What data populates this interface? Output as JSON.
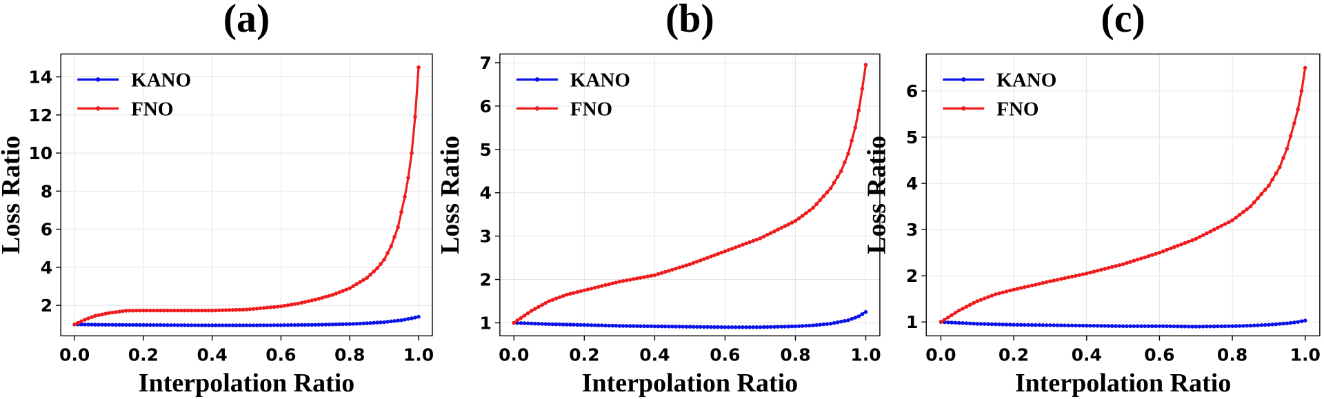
{
  "chart_data": [
    {
      "panel": "(a)",
      "type": "line",
      "xlabel": "Interpolation Ratio",
      "ylabel": "Loss Ratio",
      "xlim": [
        -0.04,
        1.04
      ],
      "ylim": [
        0.4,
        15.2
      ],
      "xticks": [
        0.0,
        0.2,
        0.4,
        0.6,
        0.8,
        1.0
      ],
      "xtick_labels": [
        "0.0",
        "0.2",
        "0.4",
        "0.6",
        "0.8",
        "1.0"
      ],
      "yticks": [
        2,
        4,
        6,
        8,
        10,
        12,
        14
      ],
      "ytick_labels": [
        "2",
        "4",
        "6",
        "8",
        "10",
        "12",
        "14"
      ],
      "grid": true,
      "legend_position": "top-left",
      "series": [
        {
          "name": "KANO",
          "color": "#0a14e6",
          "x": [
            0.0,
            0.1,
            0.2,
            0.3,
            0.4,
            0.5,
            0.6,
            0.7,
            0.8,
            0.85,
            0.9,
            0.95,
            0.98,
            1.0
          ],
          "y": [
            1.0,
            0.98,
            0.97,
            0.96,
            0.95,
            0.95,
            0.96,
            0.98,
            1.02,
            1.06,
            1.12,
            1.22,
            1.32,
            1.4
          ]
        },
        {
          "name": "FNO",
          "color": "#ee1c1c",
          "x": [
            0.0,
            0.03,
            0.06,
            0.1,
            0.15,
            0.2,
            0.3,
            0.4,
            0.5,
            0.6,
            0.65,
            0.7,
            0.75,
            0.8,
            0.85,
            0.88,
            0.9,
            0.92,
            0.94,
            0.96,
            0.97,
            0.98,
            0.99,
            1.0
          ],
          "y": [
            1.0,
            1.25,
            1.45,
            1.6,
            1.72,
            1.73,
            1.73,
            1.73,
            1.78,
            1.95,
            2.1,
            2.3,
            2.55,
            2.9,
            3.45,
            3.95,
            4.4,
            5.1,
            6.1,
            7.7,
            8.7,
            10.0,
            11.9,
            14.5
          ]
        }
      ]
    },
    {
      "panel": "(b)",
      "type": "line",
      "xlabel": "Interpolation Ratio",
      "ylabel": "Loss Ratio",
      "xlim": [
        -0.04,
        1.04
      ],
      "ylim": [
        0.7,
        7.2
      ],
      "xticks": [
        0.0,
        0.2,
        0.4,
        0.6,
        0.8,
        1.0
      ],
      "xtick_labels": [
        "0.0",
        "0.2",
        "0.4",
        "0.6",
        "0.8",
        "1.0"
      ],
      "yticks": [
        1,
        2,
        3,
        4,
        5,
        6,
        7
      ],
      "ytick_labels": [
        "1",
        "2",
        "3",
        "4",
        "5",
        "6",
        "7"
      ],
      "grid": true,
      "legend_position": "top-left",
      "series": [
        {
          "name": "KANO",
          "color": "#0a14e6",
          "x": [
            0.0,
            0.1,
            0.2,
            0.3,
            0.4,
            0.5,
            0.6,
            0.7,
            0.8,
            0.85,
            0.9,
            0.95,
            0.98,
            1.0
          ],
          "y": [
            1.0,
            0.97,
            0.95,
            0.93,
            0.92,
            0.91,
            0.9,
            0.9,
            0.92,
            0.94,
            0.98,
            1.06,
            1.15,
            1.25
          ]
        },
        {
          "name": "FNO",
          "color": "#ee1c1c",
          "x": [
            0.0,
            0.05,
            0.1,
            0.15,
            0.2,
            0.3,
            0.4,
            0.5,
            0.6,
            0.7,
            0.8,
            0.85,
            0.9,
            0.93,
            0.95,
            0.97,
            0.98,
            0.99,
            1.0
          ],
          "y": [
            1.0,
            1.28,
            1.5,
            1.65,
            1.75,
            1.95,
            2.1,
            2.35,
            2.65,
            2.95,
            3.35,
            3.65,
            4.1,
            4.5,
            4.9,
            5.5,
            5.9,
            6.4,
            6.95
          ]
        }
      ]
    },
    {
      "panel": "(c)",
      "type": "line",
      "xlabel": "Interpolation Ratio",
      "ylabel": "Loss Ratio",
      "xlim": [
        -0.04,
        1.04
      ],
      "ylim": [
        0.7,
        6.8
      ],
      "xticks": [
        0.0,
        0.2,
        0.4,
        0.6,
        0.8,
        1.0
      ],
      "xtick_labels": [
        "0.0",
        "0.2",
        "0.4",
        "0.6",
        "0.8",
        "1.0"
      ],
      "yticks": [
        1,
        2,
        3,
        4,
        5,
        6
      ],
      "ytick_labels": [
        "1",
        "2",
        "3",
        "4",
        "5",
        "6"
      ],
      "grid": true,
      "legend_position": "top-left",
      "series": [
        {
          "name": "KANO",
          "color": "#0a14e6",
          "x": [
            0.0,
            0.1,
            0.2,
            0.3,
            0.4,
            0.5,
            0.6,
            0.7,
            0.8,
            0.85,
            0.9,
            0.95,
            0.98,
            1.0
          ],
          "y": [
            1.0,
            0.96,
            0.94,
            0.93,
            0.92,
            0.91,
            0.91,
            0.9,
            0.91,
            0.92,
            0.94,
            0.97,
            1.0,
            1.03
          ]
        },
        {
          "name": "FNO",
          "color": "#ee1c1c",
          "x": [
            0.0,
            0.05,
            0.1,
            0.15,
            0.2,
            0.3,
            0.4,
            0.5,
            0.6,
            0.7,
            0.8,
            0.85,
            0.9,
            0.93,
            0.95,
            0.97,
            0.98,
            0.99,
            1.0
          ],
          "y": [
            1.0,
            1.25,
            1.45,
            1.6,
            1.7,
            1.88,
            2.05,
            2.25,
            2.5,
            2.8,
            3.2,
            3.5,
            3.95,
            4.35,
            4.75,
            5.3,
            5.6,
            6.0,
            6.5
          ]
        }
      ]
    }
  ]
}
